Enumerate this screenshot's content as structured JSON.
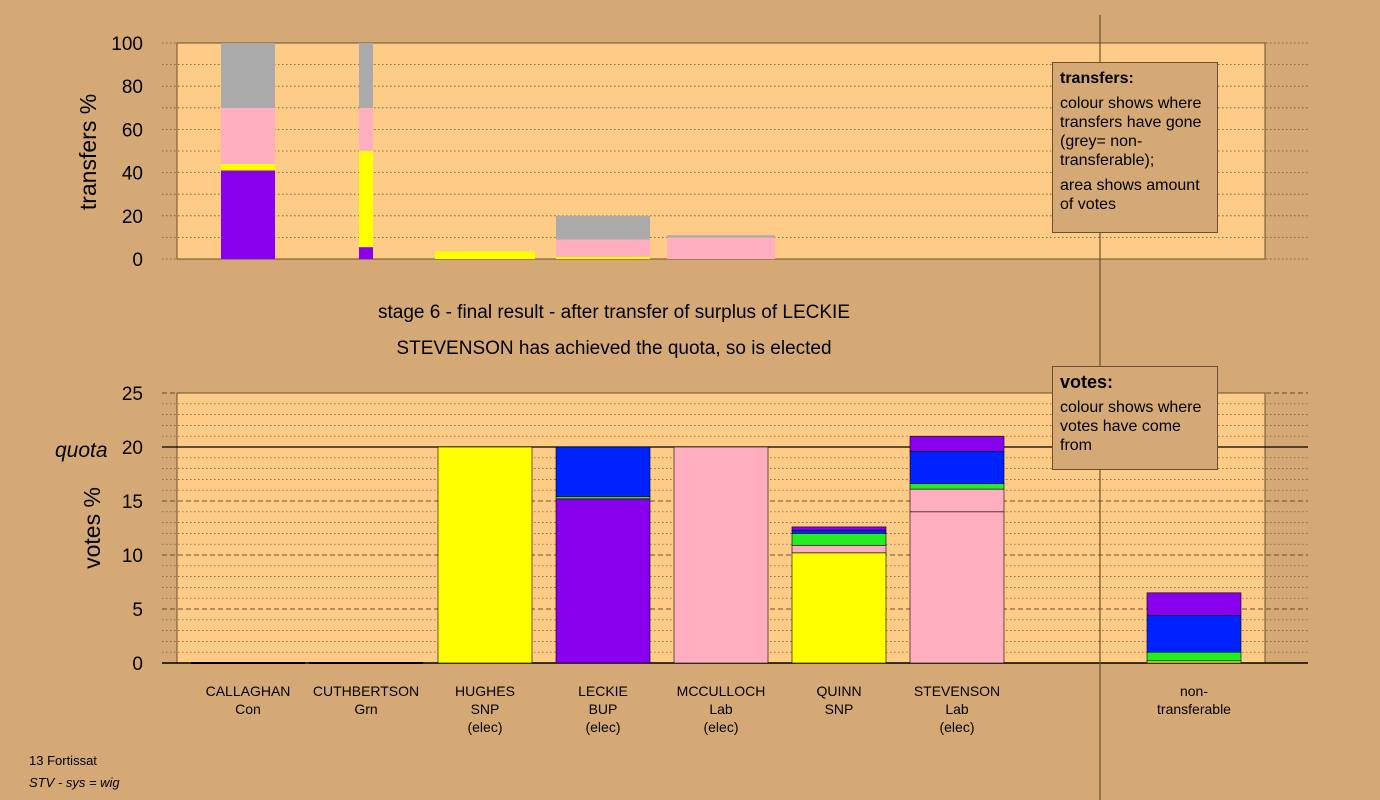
{
  "top_chart": {
    "ylabel": "transfers %",
    "ticks": [
      0,
      20,
      40,
      60,
      80,
      100
    ]
  },
  "bottom_chart": {
    "ylabel": "votes %",
    "quota_label": "quota",
    "ticks": [
      0,
      5,
      10,
      15,
      20,
      25
    ]
  },
  "stage_title": "stage 6 - final result - after transfer of surplus of LECKIE",
  "stage_subtitle": "STEVENSON has achieved the quota, so is elected",
  "legend_transfers": {
    "title": "transfers:",
    "para1": "colour shows where transfers have gone (grey= non-transferable);",
    "para2": "area shows amount of votes"
  },
  "legend_votes": {
    "title": "votes:",
    "para1": "colour shows where votes have come from"
  },
  "footer": {
    "line1": "13 Fortissat",
    "line2": "STV - sys = wig"
  },
  "colors": {
    "Con": "#8800ee",
    "Grn": "#22ee22",
    "SNP": "#ffff00",
    "BUP": "#0022ff",
    "Lab": "#ffaec0",
    "nontransferable": "#aaaaaa",
    "plot_bg": "#ffcc88",
    "page_bg": "#d4a975"
  },
  "chart_data": [
    {
      "type": "bar",
      "name": "transfers",
      "ylabel": "transfers %",
      "ylim": [
        0,
        100
      ],
      "bars": [
        {
          "column": "CALLAGHAN",
          "segments": [
            {
              "party": "Con",
              "value": 41
            },
            {
              "party": "SNP",
              "value": 3
            },
            {
              "party": "Lab",
              "value": 26
            },
            {
              "party": "nontransferable",
              "value": 30
            }
          ]
        },
        {
          "column": "CUTHBERTSON",
          "segments": [
            {
              "party": "Con",
              "value": 5.5
            },
            {
              "party": "SNP",
              "value": 44.5
            },
            {
              "party": "Lab",
              "value": 20
            },
            {
              "party": "nontransferable",
              "value": 30
            }
          ]
        },
        {
          "column": "HUGHES",
          "segments": [
            {
              "party": "SNP",
              "value": 3.5
            }
          ]
        },
        {
          "column": "LECKIE",
          "segments": [
            {
              "party": "SNP",
              "value": 1
            },
            {
              "party": "Lab",
              "value": 8
            },
            {
              "party": "nontransferable",
              "value": 11
            }
          ]
        },
        {
          "column": "MCCULLOCH",
          "segments": [
            {
              "party": "Lab",
              "value": 10
            },
            {
              "party": "nontransferable",
              "value": 1
            }
          ]
        }
      ]
    },
    {
      "type": "bar",
      "name": "votes",
      "ylabel": "votes %",
      "ylim": [
        0,
        25
      ],
      "quota": 20,
      "candidates": [
        {
          "name": "CALLAGHAN",
          "party": "Con",
          "status": "",
          "segments": []
        },
        {
          "name": "CUTHBERTSON",
          "party": "Grn",
          "status": "",
          "segments": []
        },
        {
          "name": "HUGHES",
          "party": "SNP",
          "status": "(elec)",
          "segments": [
            {
              "party": "SNP",
              "value": 20
            }
          ]
        },
        {
          "name": "LECKIE",
          "party": "BUP",
          "status": "(elec)",
          "segments": [
            {
              "party": "Con",
              "value": 15.2
            },
            {
              "party": "Grn",
              "value": 0.2
            },
            {
              "party": "BUP",
              "value": 4.6
            }
          ]
        },
        {
          "name": "MCCULLOCH",
          "party": "Lab",
          "status": "(elec)",
          "segments": [
            {
              "party": "Lab",
              "value": 20
            }
          ]
        },
        {
          "name": "QUINN",
          "party": "SNP",
          "status": "",
          "segments": [
            {
              "party": "SNP",
              "value": 10.2
            },
            {
              "party": "Lab",
              "value": 0.7
            },
            {
              "party": "Grn",
              "value": 1.1
            },
            {
              "party": "BUP",
              "value": 0.3
            },
            {
              "party": "Con",
              "value": 0.3
            }
          ]
        },
        {
          "name": "STEVENSON",
          "party": "Lab",
          "status": "(elec)",
          "segments": [
            {
              "party": "Lab",
              "value": 14
            },
            {
              "party": "Lab",
              "value": 2.1
            },
            {
              "party": "Grn",
              "value": 0.5
            },
            {
              "party": "BUP",
              "value": 3
            },
            {
              "party": "Con",
              "value": 1.4
            }
          ]
        },
        {
          "name": "non-transferable",
          "party": "",
          "status": "",
          "segments": [
            {
              "party": "SNP",
              "value": 0.2
            },
            {
              "party": "Grn",
              "value": 0.8
            },
            {
              "party": "BUP",
              "value": 3.4
            },
            {
              "party": "Con",
              "value": 2.1
            }
          ]
        }
      ]
    }
  ]
}
